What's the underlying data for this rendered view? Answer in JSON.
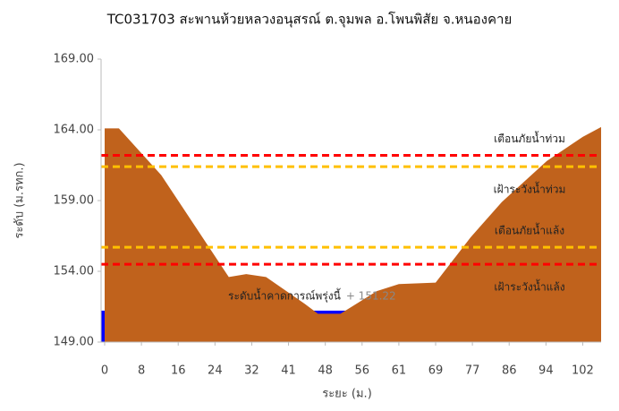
{
  "chart_data": {
    "type": "cross_section",
    "title": "TC031703 สะพานห้วยหลวงอนุสรณ์ ต.จุมพล อ.โพนพิสัย จ.หนองคาย",
    "x_label": "ระยะ (ม.)",
    "y_label": "ระดับ (ม.รทก.)",
    "xlim": [
      0,
      106
    ],
    "xticks": [
      0,
      8,
      16,
      24,
      32,
      41,
      48,
      56,
      61,
      69,
      77,
      86,
      94,
      102
    ],
    "ylim": [
      149,
      169
    ],
    "yticks": [
      {
        "value": 149,
        "label": "149.00"
      },
      {
        "value": 154,
        "label": "154.00"
      },
      {
        "value": 159,
        "label": "159.00"
      },
      {
        "value": 164,
        "label": "164.00"
      },
      {
        "value": 169,
        "label": "169.00"
      }
    ],
    "ground": {
      "color": "#c0621c",
      "x": [
        0,
        3.1,
        12.3,
        27,
        30.8,
        35.5,
        44.1,
        46.6,
        51.3,
        58,
        61,
        69,
        76.6,
        84.2,
        94.2,
        102,
        106
      ],
      "values": [
        164.1,
        164.1,
        160.8,
        153.6,
        153.8,
        153.6,
        151.7,
        151.0,
        151.0,
        152.6,
        153.1,
        153.2,
        156.4,
        158.9,
        161.8,
        163.5,
        164.2
      ]
    },
    "water": {
      "name": "ระดับน้ำคาดการณ์พรุ่งนี้",
      "value": 151.22,
      "value_label": "+ 151.22",
      "color": "#0000ff"
    },
    "thresholds": [
      {
        "name": "เตือนภัยน้ำท่วม",
        "value": 162.2,
        "color": "#ff0000",
        "label_position": "above"
      },
      {
        "name": "เฝ้าระวังน้ำท่วม",
        "value": 161.4,
        "color": "#ffc000",
        "label_position": "below"
      },
      {
        "name": "เตือนภัยน้ำแล้ง",
        "value": 155.7,
        "color": "#ffc000",
        "label_position": "above"
      },
      {
        "name": "เฝ้าระวังน้ำแล้ง",
        "value": 154.5,
        "color": "#ff0000",
        "label_position": "below"
      }
    ],
    "grid": false
  }
}
